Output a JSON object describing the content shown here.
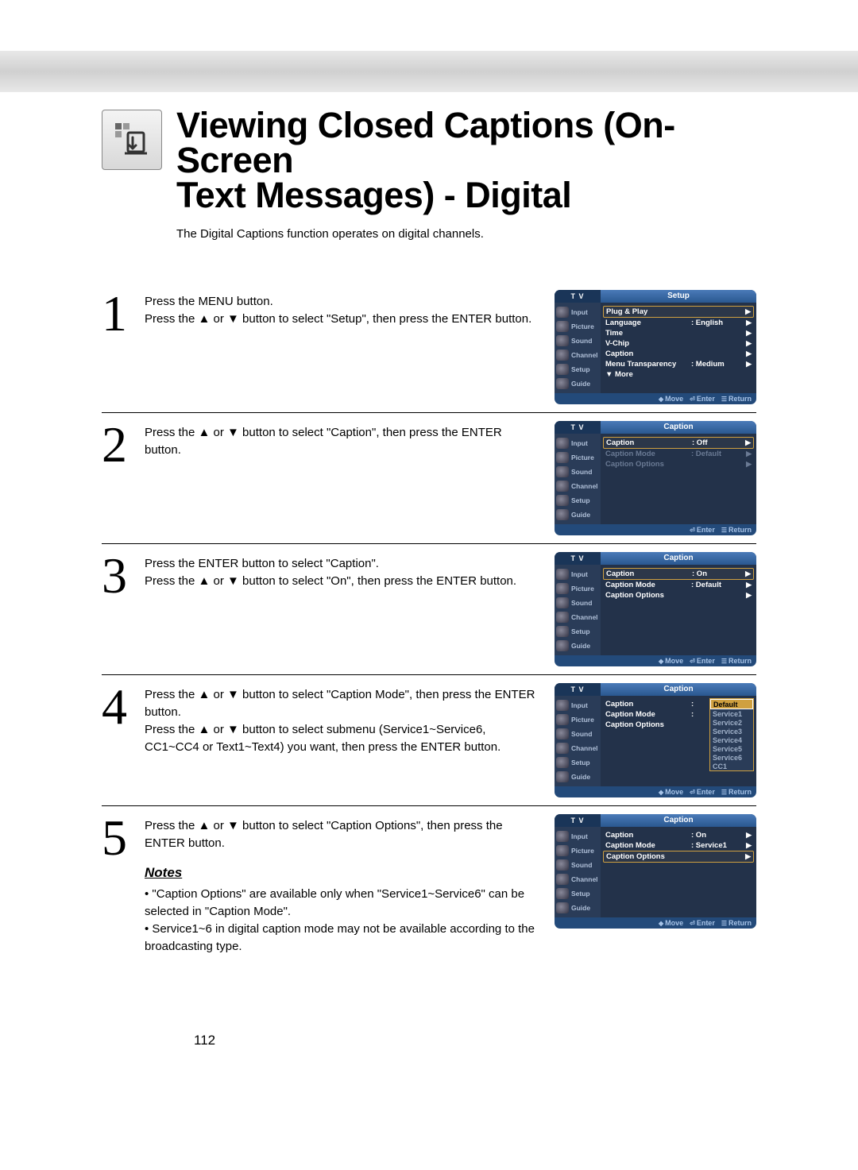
{
  "page_number": "112",
  "title_line1": "Viewing Closed Captions (On-Screen",
  "title_line2": "Text Messages) - Digital",
  "subtitle": "The Digital Captions function operates on digital channels.",
  "notes_heading": "Notes",
  "notes": [
    "\"Caption Options\" are available only when \"Service1~Service6\" can be selected in \"Caption Mode\".",
    "Service1~6 in digital caption mode may not be available according to the broadcasting type."
  ],
  "steps": [
    {
      "num": "1",
      "text": "Press the MENU button.\nPress the ▲ or ▼ button to select \"Setup\", then press the ENTER button."
    },
    {
      "num": "2",
      "text": "Press the ▲ or ▼ button to select \"Caption\", then press the ENTER button."
    },
    {
      "num": "3",
      "text": "Press the ENTER button to select \"Caption\".\nPress the ▲ or ▼ button to select \"On\", then press the ENTER button."
    },
    {
      "num": "4",
      "text": "Press the ▲ or ▼ button to select \"Caption Mode\", then press the ENTER button.\nPress the ▲ or ▼ button to select submenu (Service1~Service6, CC1~CC4 or Text1~Text4) you want, then press the ENTER button."
    },
    {
      "num": "5",
      "text": "Press the ▲ or ▼ button to select \"Caption Options\", then press the ENTER button."
    }
  ],
  "osd_side_items": [
    "Input",
    "Picture",
    "Sound",
    "Channel",
    "Setup",
    "Guide"
  ],
  "osd_tv_label": "T V",
  "osd_footer": {
    "move": "Move",
    "enter": "Enter",
    "return": "Return"
  },
  "osd1": {
    "title": "Setup",
    "rows": [
      {
        "lab": "Plug & Play",
        "val": "",
        "sel": true,
        "arr": "▶"
      },
      {
        "lab": "Language",
        "val": ": English",
        "arr": "▶"
      },
      {
        "lab": "Time",
        "val": "",
        "arr": "▶"
      },
      {
        "lab": "V-Chip",
        "val": "",
        "arr": "▶"
      },
      {
        "lab": "Caption",
        "val": "",
        "arr": "▶"
      },
      {
        "lab": "Menu Transparency",
        "val": ": Medium",
        "arr": "▶"
      },
      {
        "lab": "▼ More",
        "val": "",
        "arr": ""
      }
    ],
    "footer": [
      "move",
      "enter",
      "return"
    ]
  },
  "osd2": {
    "title": "Caption",
    "rows": [
      {
        "lab": "Caption",
        "val": ": Off",
        "sel": true,
        "arr": "▶"
      },
      {
        "lab": "Caption Mode",
        "val": ": Default",
        "dim": true,
        "arr": "▶"
      },
      {
        "lab": "Caption Options",
        "val": "",
        "dim": true,
        "arr": "▶"
      }
    ],
    "footer": [
      "enter",
      "return"
    ]
  },
  "osd3": {
    "title": "Caption",
    "rows": [
      {
        "lab": "Caption",
        "val": ": On",
        "sel": true,
        "arr": "▶"
      },
      {
        "lab": "Caption Mode",
        "val": ": Default",
        "arr": "▶"
      },
      {
        "lab": "Caption Options",
        "val": "",
        "arr": "▶"
      }
    ],
    "footer": [
      "move",
      "enter",
      "return"
    ]
  },
  "osd4": {
    "title": "Caption",
    "rows": [
      {
        "lab": "Caption",
        "val": ":",
        "arr": ""
      },
      {
        "lab": "Caption Mode",
        "val": ":",
        "arr": ""
      },
      {
        "lab": "Caption Options",
        "val": "",
        "arr": ""
      }
    ],
    "dropdown": [
      "Default",
      "Service1",
      "Service2",
      "Service3",
      "Service4",
      "Service5",
      "Service6",
      "CC1"
    ],
    "dropdown_sel": 0,
    "footer": [
      "move",
      "enter",
      "return"
    ]
  },
  "osd5": {
    "title": "Caption",
    "rows": [
      {
        "lab": "Caption",
        "val": ": On",
        "arr": "▶"
      },
      {
        "lab": "Caption Mode",
        "val": ": Service1",
        "arr": "▶"
      },
      {
        "lab": "Caption Options",
        "val": "",
        "sel": true,
        "arr": "▶"
      }
    ],
    "footer": [
      "move",
      "enter",
      "return"
    ]
  },
  "colors": {
    "osd_header_left": "#1a3558",
    "osd_header_right_top": "#4a7ab8",
    "osd_header_right_bot": "#2a5890",
    "osd_body": "#2a3c58",
    "osd_main": "#23324a",
    "osd_sel_border": "#cfa040",
    "osd_dim_text": "#6a7a94",
    "osd_footer_bg": "#234a7a",
    "osd_footer_text": "#a8c4e8"
  }
}
